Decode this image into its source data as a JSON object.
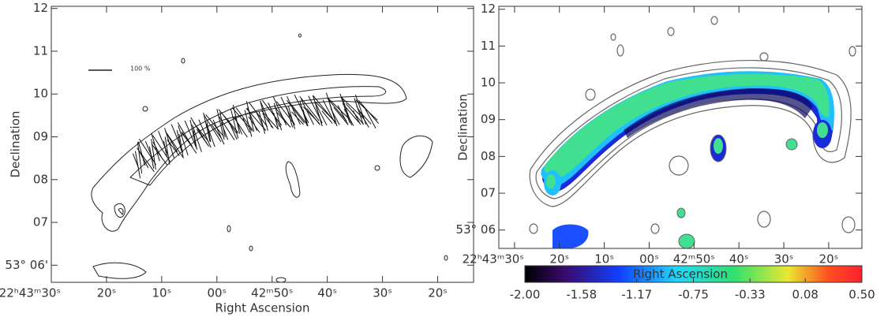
{
  "chart_data": [
    {
      "type": "contour",
      "xlabel": "Right Ascension",
      "ylabel": "Declination",
      "annotations": [
        "100 %"
      ],
      "xlim": [
        90,
        13.5
      ],
      "ylim": [
        5.6,
        12.05
      ],
      "xticks": [
        {
          "value": 90,
          "label": "22ʰ43ᵐ30ˢ"
        },
        {
          "value": 80,
          "label": "20ˢ"
        },
        {
          "value": 70,
          "label": "10ˢ"
        },
        {
          "value": 60,
          "label": "00ˢ"
        },
        {
          "value": 50,
          "label": "42ᵐ50ˢ"
        },
        {
          "value": 40,
          "label": "40ˢ"
        },
        {
          "value": 30,
          "label": "30ˢ"
        },
        {
          "value": 20,
          "label": "20ˢ"
        }
      ],
      "yticks": [
        {
          "value": 12,
          "label": "12"
        },
        {
          "value": 11,
          "label": "11"
        },
        {
          "value": 10,
          "label": "10"
        },
        {
          "value": 9,
          "label": "09"
        },
        {
          "value": 8,
          "label": "08"
        },
        {
          "value": 7,
          "label": "07"
        },
        {
          "value": 6,
          "label": "53° 06'"
        }
      ]
    },
    {
      "type": "image",
      "xlabel": "Right Ascension",
      "ylabel": "Declination",
      "xlim": [
        93.5,
        12.6
      ],
      "ylim": [
        5.5,
        12.08
      ],
      "xticks": [
        {
          "value": 90,
          "label": "22ʰ43ᵐ30ˢ"
        },
        {
          "value": 80,
          "label": "20ˢ"
        },
        {
          "value": 70,
          "label": "10ˢ"
        },
        {
          "value": 60,
          "label": "00ˢ"
        },
        {
          "value": 50,
          "label": "42ᵐ50ˢ"
        },
        {
          "value": 40,
          "label": "40ˢ"
        },
        {
          "value": 30,
          "label": "30ˢ"
        },
        {
          "value": 20,
          "label": "20ˢ"
        }
      ],
      "yticks": [
        {
          "value": 12,
          "label": "12"
        },
        {
          "value": 11,
          "label": "11"
        },
        {
          "value": 10,
          "label": "10"
        },
        {
          "value": 9,
          "label": "09"
        },
        {
          "value": 8,
          "label": "08"
        },
        {
          "value": 7,
          "label": "07"
        },
        {
          "value": 6,
          "label": "53° 06"
        }
      ],
      "colorbar": {
        "lim": [
          -2,
          0.5
        ],
        "ticks": [
          {
            "value": -2,
            "label": "-2.00"
          },
          -1.58,
          -1.17,
          -0.75,
          -0.33,
          0.08,
          {
            "value": 0.5,
            "label": "0.50"
          }
        ]
      }
    }
  ]
}
